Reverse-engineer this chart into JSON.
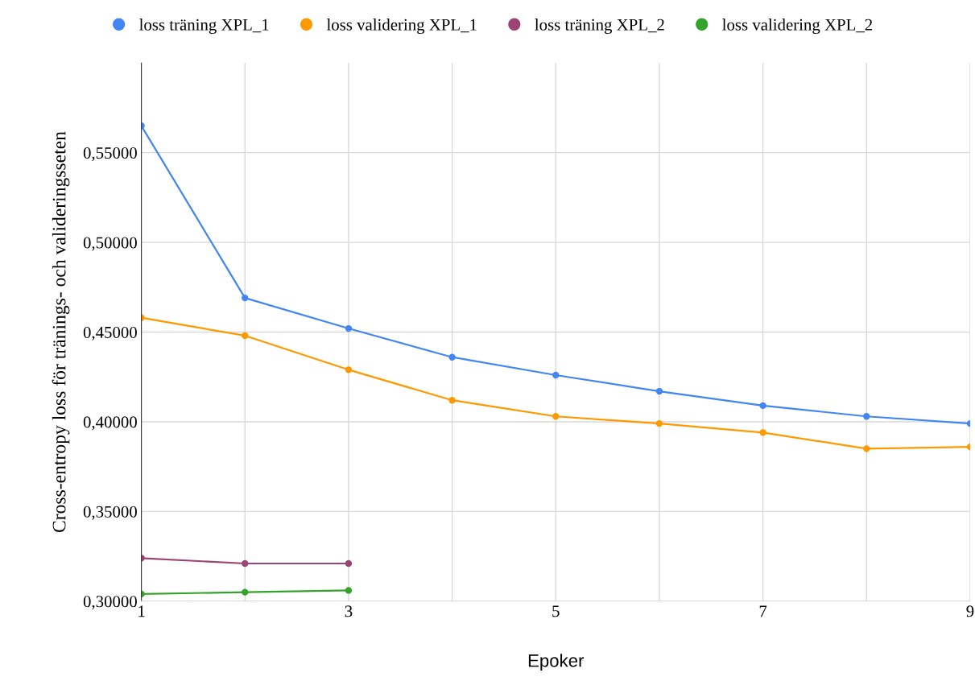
{
  "chart_data": {
    "type": "line",
    "xlabel": "Epoker",
    "ylabel": "Cross-entropy loss för tränings- och valideringsseten",
    "x": [
      1,
      2,
      3,
      4,
      5,
      6,
      7,
      8,
      9
    ],
    "series": [
      {
        "name": "loss träning XPL_1",
        "color": "#4285f4",
        "values": [
          0.565,
          0.469,
          0.452,
          0.436,
          0.426,
          0.417,
          0.409,
          0.403,
          0.399
        ]
      },
      {
        "name": "loss validering XPL_1",
        "color": "#ff9900",
        "values": [
          0.458,
          0.448,
          0.429,
          0.412,
          0.403,
          0.399,
          0.394,
          0.385,
          0.386
        ]
      },
      {
        "name": "loss träning XPL_2",
        "color": "#9c4473",
        "values": [
          0.324,
          0.321,
          0.321,
          null,
          null,
          null,
          null,
          null,
          null
        ]
      },
      {
        "name": "loss validering XPL_2",
        "color": "#34a32a",
        "values": [
          0.304,
          0.305,
          0.306,
          null,
          null,
          null,
          null,
          null,
          null
        ]
      }
    ],
    "xlim": [
      1,
      9
    ],
    "xticks": [
      1,
      {
        "value": 2,
        "label": null
      },
      3,
      {
        "value": 4,
        "label": null
      },
      5,
      {
        "value": 6,
        "label": null
      },
      7,
      {
        "value": 8,
        "label": null
      },
      9
    ],
    "ylim": [
      0.3,
      0.6
    ],
    "yticks": [
      {
        "value": 0.3,
        "label": "0,30000"
      },
      {
        "value": 0.35,
        "label": "0,35000"
      },
      {
        "value": 0.4,
        "label": "0,40000"
      },
      {
        "value": 0.45,
        "label": "0,45000"
      },
      {
        "value": 0.5,
        "label": "0,50000"
      },
      {
        "value": 0.55,
        "label": "0,55000"
      }
    ],
    "grid": true,
    "legend": "top",
    "marker": "circle",
    "line_style": "solid"
  }
}
